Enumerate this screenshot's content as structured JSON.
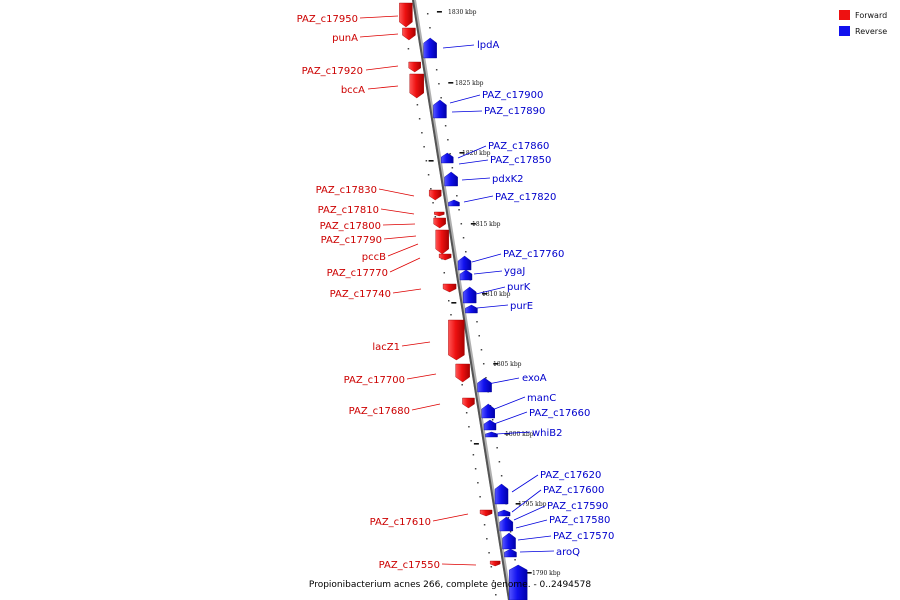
{
  "caption": "Propionibacterium acnes 266, complete genome. - 0..2494578",
  "legend": [
    {
      "label": "Forward",
      "color": "#ee1111"
    },
    {
      "label": "Reverse",
      "color": "#1111ee"
    }
  ],
  "ticks": [
    "1830 kbp",
    "1825 kbp",
    "1820 kbp",
    "1815 kbp",
    "1810 kbp",
    "1805 kbp",
    "1800 kbp",
    "1795 kbp",
    "1790 kbp"
  ],
  "forward_genes": [
    "PAZ_c17950",
    "punA",
    "PAZ_c17920",
    "bccA",
    "PAZ_c17830",
    "PAZ_c17810",
    "PAZ_c17800",
    "PAZ_c17790",
    "pccB",
    "PAZ_c17770",
    "PAZ_c17740",
    "lacZ1",
    "PAZ_c17700",
    "PAZ_c17680",
    "PAZ_c17610",
    "PAZ_c17550"
  ],
  "reverse_genes": [
    "lpdA",
    "PAZ_c17900",
    "PAZ_c17890",
    "PAZ_c17860",
    "PAZ_c17850",
    "pdxK2",
    "PAZ_c17820",
    "PAZ_c17760",
    "ygaJ",
    "purK",
    "purE",
    "exoA",
    "manC",
    "PAZ_c17660",
    "whiB2",
    "PAZ_c17620",
    "PAZ_c17600",
    "PAZ_c17590",
    "PAZ_c17580",
    "PAZ_c17570",
    "aroQ"
  ]
}
